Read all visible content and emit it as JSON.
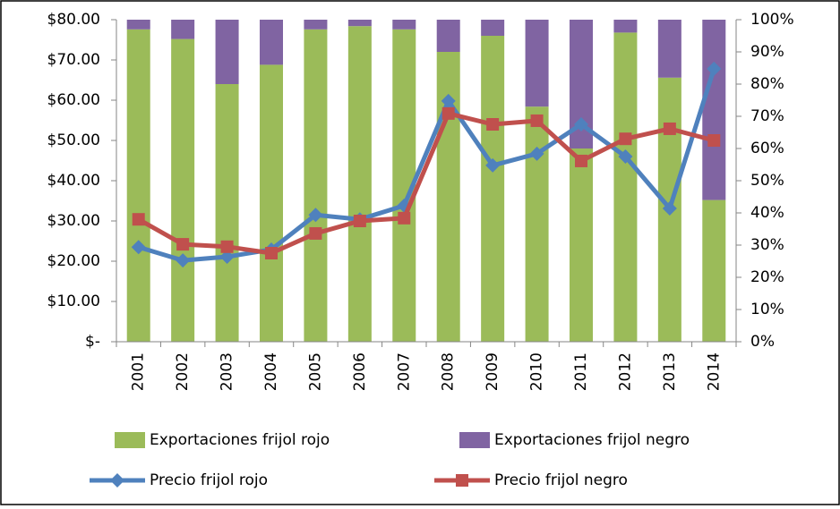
{
  "chart_data": {
    "type": "bar-line",
    "categories": [
      "2001",
      "2002",
      "2003",
      "2004",
      "2005",
      "2006",
      "2007",
      "2008",
      "2009",
      "2010",
      "2011",
      "2012",
      "2013",
      "2014"
    ],
    "ylim": [
      0,
      80
    ],
    "yticks": [
      {
        "value": 0,
        "label": "$-"
      },
      {
        "value": 10,
        "label": "$10.00"
      },
      {
        "value": 20,
        "label": "$20.00"
      },
      {
        "value": 30,
        "label": "$30.00"
      },
      {
        "value": 40,
        "label": "$40.00"
      },
      {
        "value": 50,
        "label": "$50.00"
      },
      {
        "value": 60,
        "label": "$60.00"
      },
      {
        "value": 70,
        "label": "$70.00"
      },
      {
        "value": 80,
        "label": "$80.00"
      }
    ],
    "y2lim": [
      0,
      100
    ],
    "y2ticks": [
      {
        "value": 0,
        "label": "0%"
      },
      {
        "value": 10,
        "label": "10%"
      },
      {
        "value": 20,
        "label": "20%"
      },
      {
        "value": 30,
        "label": "30%"
      },
      {
        "value": 40,
        "label": "40%"
      },
      {
        "value": 50,
        "label": "50%"
      },
      {
        "value": 60,
        "label": "60%"
      },
      {
        "value": 70,
        "label": "70%"
      },
      {
        "value": 80,
        "label": "80%"
      },
      {
        "value": 90,
        "label": "90%"
      },
      {
        "value": 100,
        "label": "100%"
      }
    ],
    "series": [
      {
        "name": "Exportaciones frijol rojo",
        "type": "bar",
        "axis": "y2",
        "color": "#9bbb59",
        "values": [
          97,
          94,
          80,
          86,
          97,
          98,
          97,
          90,
          95,
          73,
          60,
          96,
          82,
          44
        ]
      },
      {
        "name": "Exportaciones frijol negro",
        "type": "bar",
        "axis": "y2",
        "color": "#8064a2",
        "values": [
          3,
          6,
          20,
          14,
          3,
          2,
          3,
          10,
          5,
          27,
          40,
          4,
          18,
          56
        ]
      },
      {
        "name": "Precio frijol rojo",
        "type": "line",
        "marker": "diamond",
        "color": "#4f81bd",
        "values": [
          23.5,
          20.2,
          21.1,
          22.9,
          31.5,
          30.4,
          33.8,
          59.8,
          43.8,
          46.7,
          54,
          46,
          33.1,
          67.8
        ]
      },
      {
        "name": "Precio frijol negro",
        "type": "line",
        "marker": "square",
        "color": "#c0504d",
        "values": [
          30.4,
          24.2,
          23.6,
          22,
          26.9,
          30,
          30.7,
          56.7,
          54,
          54.9,
          44.9,
          50.4,
          52.9,
          50
        ]
      }
    ]
  }
}
